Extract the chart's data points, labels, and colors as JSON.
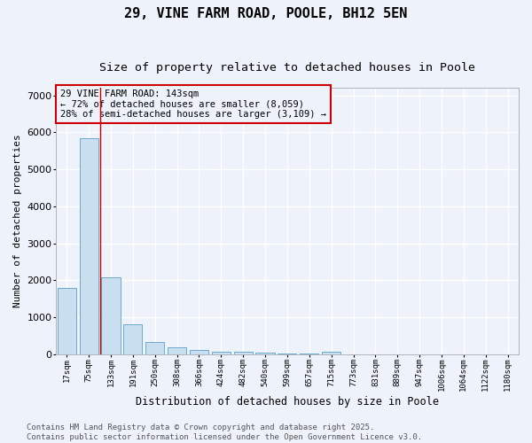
{
  "title1": "29, VINE FARM ROAD, POOLE, BH12 5EN",
  "title2": "Size of property relative to detached houses in Poole",
  "xlabel": "Distribution of detached houses by size in Poole",
  "ylabel": "Number of detached properties",
  "categories": [
    "17sqm",
    "75sqm",
    "133sqm",
    "191sqm",
    "250sqm",
    "308sqm",
    "366sqm",
    "424sqm",
    "482sqm",
    "540sqm",
    "599sqm",
    "657sqm",
    "715sqm",
    "773sqm",
    "831sqm",
    "889sqm",
    "947sqm",
    "1006sqm",
    "1064sqm",
    "1122sqm",
    "1180sqm"
  ],
  "values": [
    1780,
    5850,
    2070,
    810,
    320,
    185,
    100,
    75,
    60,
    35,
    20,
    12,
    60,
    0,
    0,
    0,
    0,
    0,
    0,
    0,
    0
  ],
  "bar_color": "#c9dff0",
  "bar_edge_color": "#5a9ec9",
  "vline_x": 2,
  "annotation_box_text": "29 VINE FARM ROAD: 143sqm\n← 72% of detached houses are smaller (8,059)\n28% of semi-detached houses are larger (3,109) →",
  "annotation_box_color": "#cc0000",
  "ylim": [
    0,
    7200
  ],
  "yticks": [
    0,
    1000,
    2000,
    3000,
    4000,
    5000,
    6000,
    7000
  ],
  "footer_line1": "Contains HM Land Registry data © Crown copyright and database right 2025.",
  "footer_line2": "Contains public sector information licensed under the Open Government Licence v3.0.",
  "bg_color": "#eef2fb",
  "grid_color": "#ffffff",
  "title1_fontsize": 11,
  "title2_fontsize": 9.5,
  "annotation_fontsize": 7.5,
  "footer_fontsize": 6.5
}
